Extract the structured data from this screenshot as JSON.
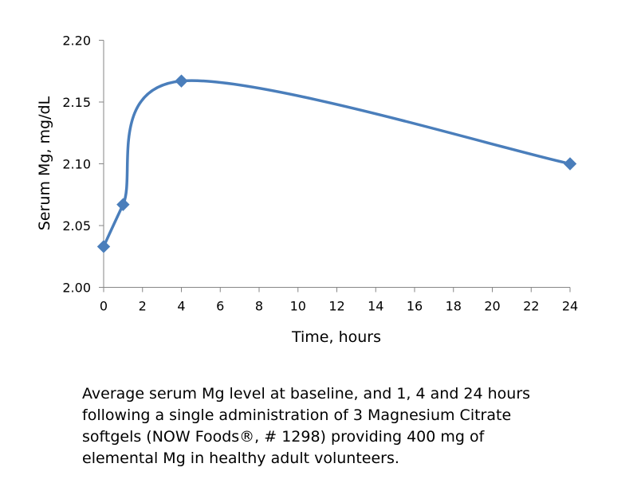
{
  "chart_data": {
    "type": "line",
    "title": "",
    "xlabel": "Time, hours",
    "ylabel": "Serum Mg, mg/dL",
    "xlim": [
      0,
      24
    ],
    "ylim": [
      2.0,
      2.2
    ],
    "xticks": [
      "0",
      "2",
      "4",
      "6",
      "8",
      "10",
      "12",
      "14",
      "16",
      "18",
      "20",
      "22",
      "24"
    ],
    "yticks": [
      "2.00",
      "2.05",
      "2.10",
      "2.15",
      "2.20"
    ],
    "grid": false,
    "legend": "none",
    "series": [
      {
        "name": "Serum Mg",
        "x": [
          0,
          1,
          4,
          24
        ],
        "y": [
          2.033,
          2.067,
          2.167,
          2.1
        ],
        "color": "#4a7ebb",
        "smooth": true,
        "marker": "diamond"
      }
    ]
  },
  "caption": [
    "Average serum Mg level at baseline, and 1, 4 and 24 hours",
    "following a single administration of 3 Magnesium Citrate",
    "softgels (NOW Foods®, # 1298) providing 400 mg of",
    "elemental Mg in healthy adult volunteers."
  ]
}
